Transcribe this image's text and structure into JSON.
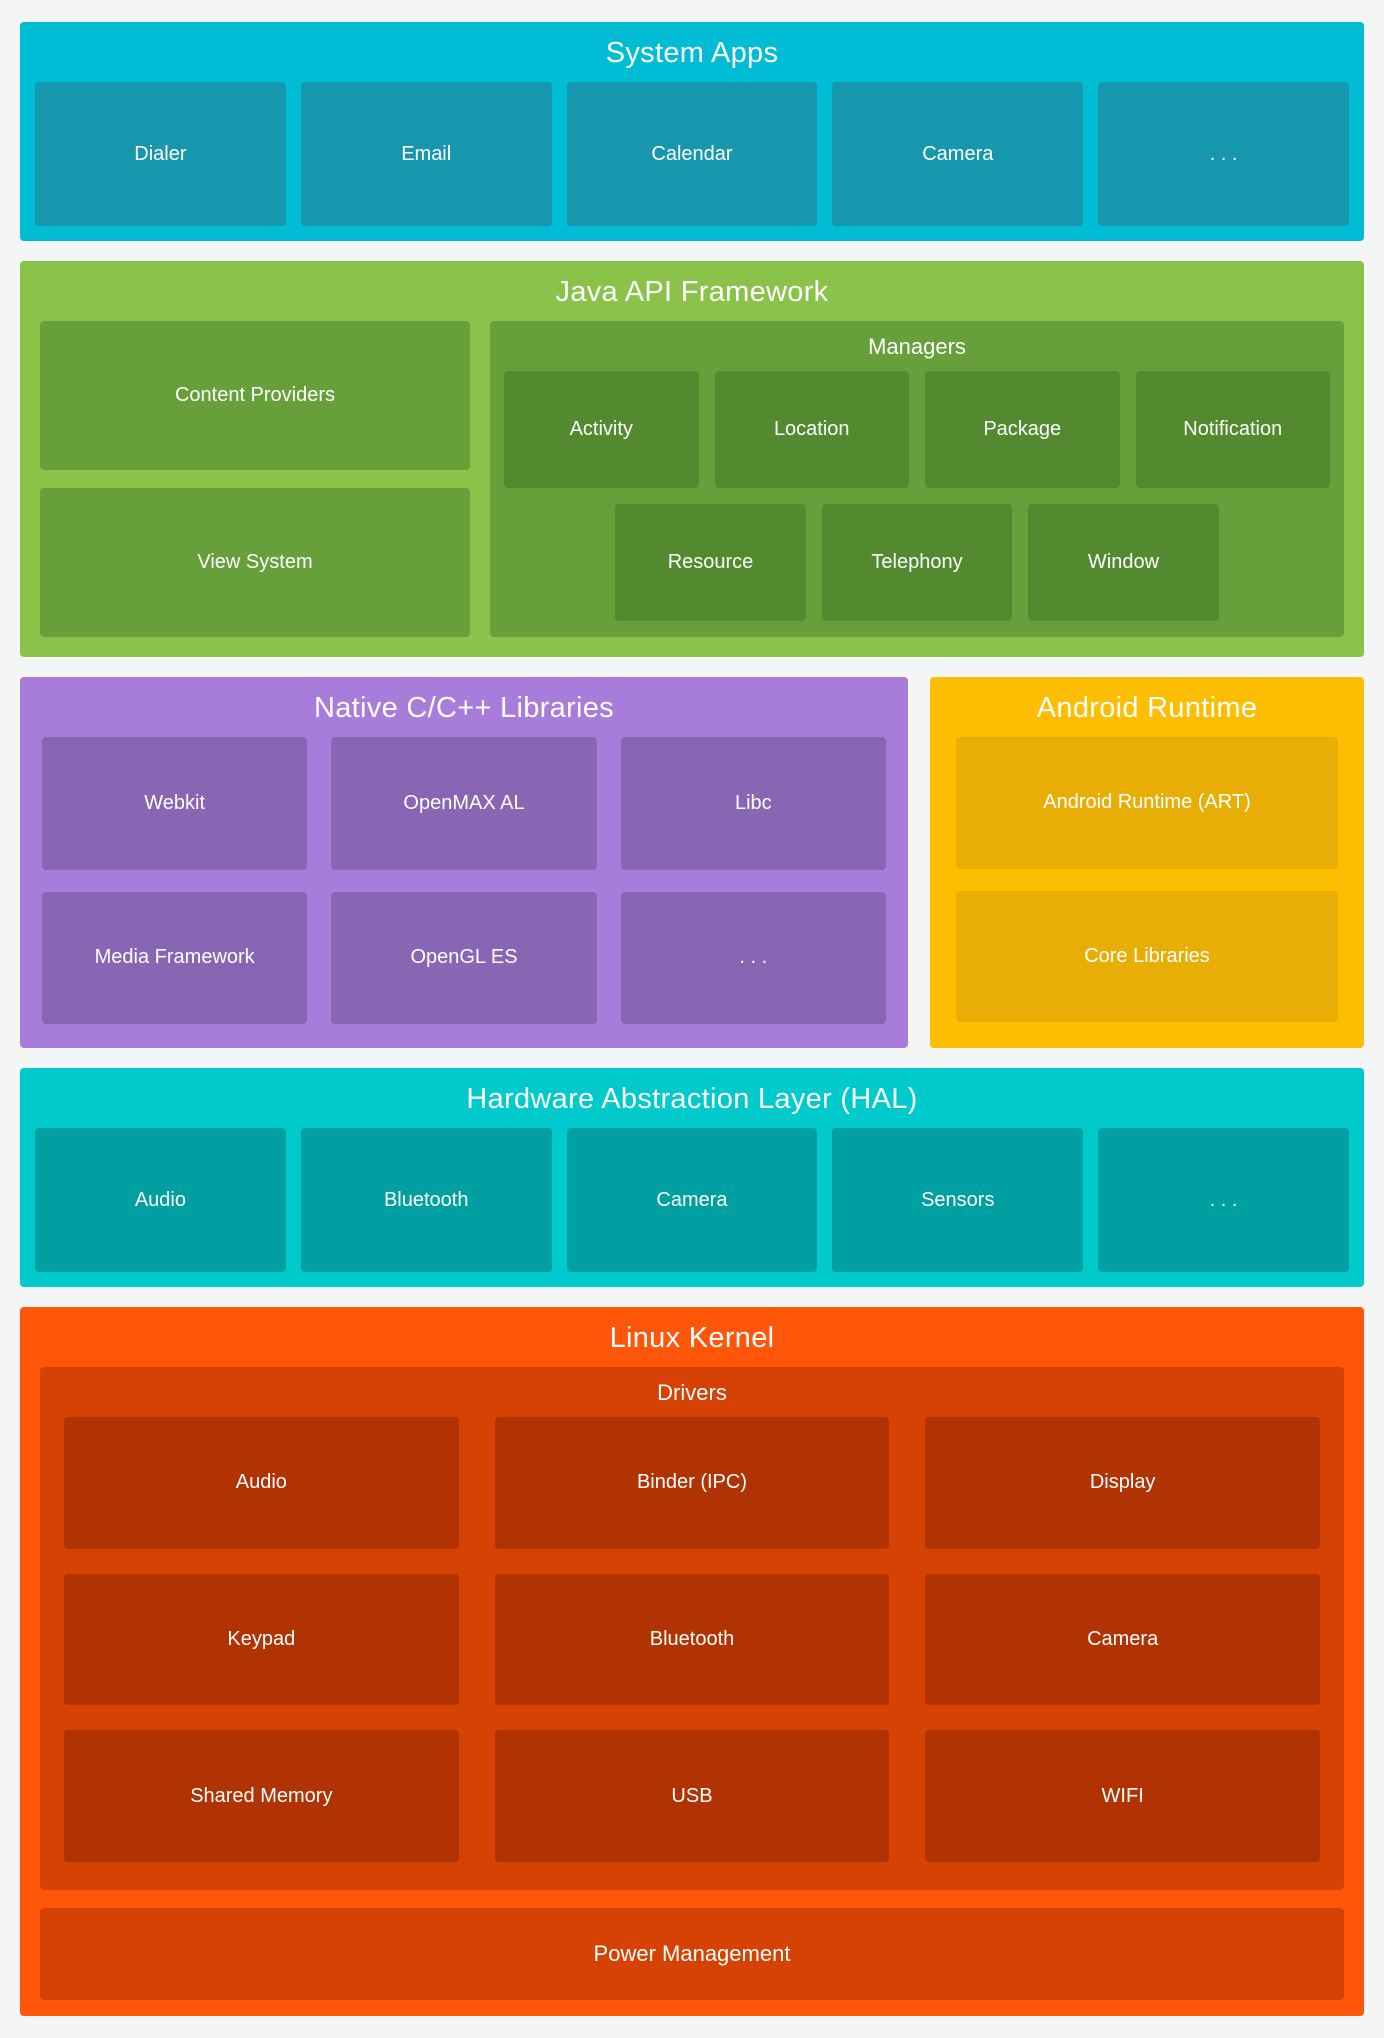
{
  "colors": {
    "page_bg": "#F4F5F5",
    "text": "#FFFFFF",
    "system_apps_bg": "#00BCD4",
    "system_apps_box": "#1797AD",
    "java_bg": "#8AC24A",
    "java_box": "#67A03A",
    "java_inner_box": "#538A2F",
    "native_bg": "#A87CDA",
    "native_box": "#8966B4",
    "runtime_bg": "#FDBD00",
    "runtime_box": "#E9AE06",
    "hal_bg": "#00CACB",
    "hal_box": "#00A0A2",
    "kernel_bg": "#FF560A",
    "kernel_container": "#D64203",
    "kernel_box": "#B13202"
  },
  "system_apps": {
    "title": "System Apps",
    "boxes": [
      "Dialer",
      "Email",
      "Calendar",
      "Camera",
      ". . ."
    ]
  },
  "java_api": {
    "title": "Java API Framework",
    "left_boxes": [
      "Content Providers",
      "View System"
    ],
    "managers": {
      "title": "Managers",
      "row1": [
        "Activity",
        "Location",
        "Package",
        "Notification"
      ],
      "row2": [
        "Resource",
        "Telephony",
        "Window"
      ]
    }
  },
  "native_libs": {
    "title": "Native C/C++ Libraries",
    "boxes": [
      "Webkit",
      "OpenMAX AL",
      "Libc",
      "Media Framework",
      "OpenGL ES",
      ". . ."
    ]
  },
  "android_runtime": {
    "title": "Android Runtime",
    "boxes": [
      "Android Runtime (ART)",
      "Core Libraries"
    ]
  },
  "hal": {
    "title": "Hardware Abstraction Layer (HAL)",
    "boxes": [
      "Audio",
      "Bluetooth",
      "Camera",
      "Sensors",
      ". . ."
    ]
  },
  "linux_kernel": {
    "title": "Linux Kernel",
    "drivers": {
      "title": "Drivers",
      "rows": [
        [
          "Audio",
          "Binder (IPC)",
          "Display"
        ],
        [
          "Keypad",
          "Bluetooth",
          "Camera"
        ],
        [
          "Shared Memory",
          "USB",
          "WIFI"
        ]
      ]
    },
    "power": "Power Management"
  }
}
